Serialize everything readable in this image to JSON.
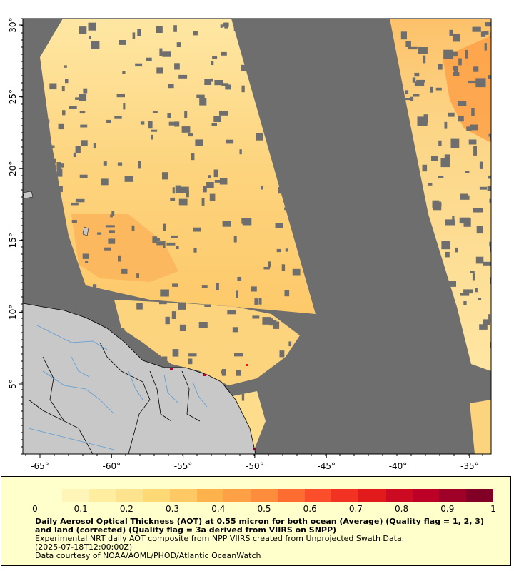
{
  "map": {
    "lat_ticks": [
      "5°",
      "10°",
      "15°",
      "20°",
      "25°",
      "30°"
    ],
    "lon_ticks": [
      "-65°",
      "-60°",
      "-55°",
      "-50°",
      "-45°",
      "-40°",
      "-35°"
    ],
    "colors": {
      "no_data": "#6e6e6e",
      "land": "#c8c8c8",
      "land_border": "#000000",
      "rivers": "#5b9bd5",
      "aot_low": "#ffffcc",
      "aot_mid": "#fdbb5a",
      "aot_high": "#7f0026"
    }
  },
  "legend": {
    "scale_ticks": [
      "0",
      "0.1",
      "0.2",
      "0.3",
      "0.4",
      "0.5",
      "0.6",
      "0.7",
      "0.8",
      "0.9",
      "1"
    ],
    "scale_colors": [
      "#ffffcc",
      "#fff5b8",
      "#ffeda0",
      "#fee38e",
      "#fed976",
      "#fec965",
      "#feb24c",
      "#fea146",
      "#fd8d3c",
      "#fd6d31",
      "#fc4e2a",
      "#f23222",
      "#e31a1c",
      "#cc0b22",
      "#bd0026",
      "#9e0027",
      "#800026"
    ],
    "title": "Daily Aerosol Optical Thickness (AOT) at 0.55 micron for both ocean (Average) (Quality flag = 1, 2, 3) and land (corrected) (Quality flag = 3a derived from VIIRS on SNPP)",
    "line1": "Experimental NRT daily AOT composite from NPP VIIRS created from Unprojected Swath Data.",
    "line2": "(2025-07-18T12:00:00Z)",
    "line3": "Data courtesy of NOAA/AOML/PHOD/Atlantic OceanWatch"
  }
}
